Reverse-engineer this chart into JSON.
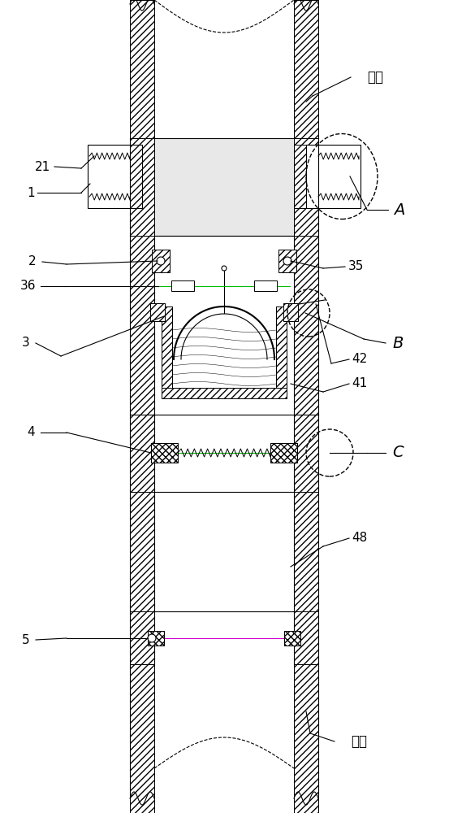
{
  "bg_color": "#ffffff",
  "line_color": "#000000",
  "fig_width": 5.53,
  "fig_height": 10.0,
  "labels": {
    "guan_dao_top": "管道",
    "guan_dao_bottom": "管道",
    "label_21": "21",
    "label_1": "1",
    "label_2": "2",
    "label_36": "36",
    "label_3": "3",
    "label_4": "4",
    "label_5": "5",
    "label_35": "35",
    "label_42": "42",
    "label_41": "41",
    "label_48": "48",
    "label_A": "A",
    "label_B": "B",
    "label_C": "C"
  }
}
